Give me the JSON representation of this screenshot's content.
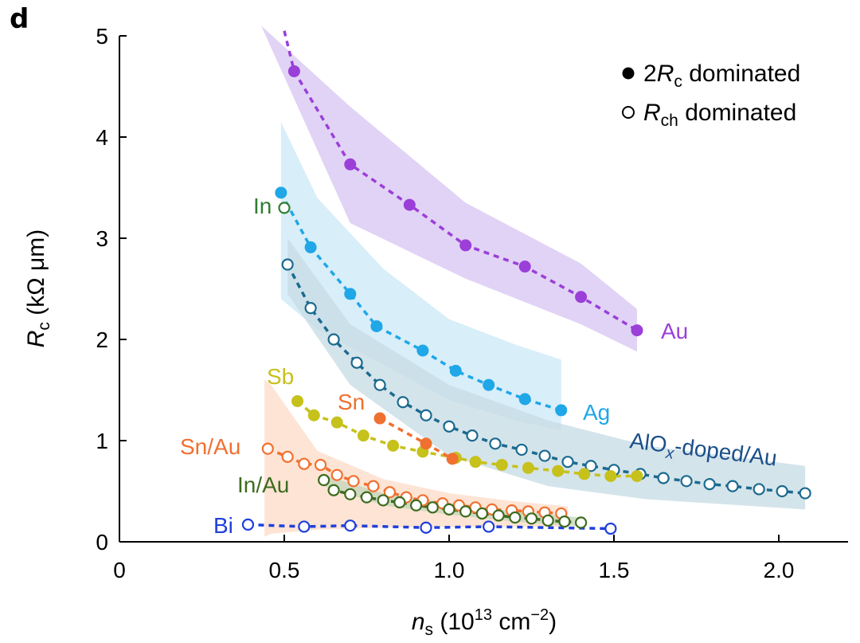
{
  "panel_label": "d",
  "chart_data": {
    "type": "scatter",
    "title": "",
    "xlabel": {
      "main": "n",
      "sub": "s",
      "unit_open": " (10",
      "sup": "13",
      "unit_rest": " cm",
      "sup2": "−2",
      "close": ")"
    },
    "ylabel": {
      "main": "R",
      "sub": "c",
      "unit": " (kΩ μm)"
    },
    "xlim": [
      0,
      2.2
    ],
    "ylim": [
      0,
      5
    ],
    "xticks": [
      0,
      0.5,
      1.0,
      1.5,
      2.0
    ],
    "xtick_labels": [
      "0",
      "0.5",
      "1.0",
      "1.5",
      "2.0"
    ],
    "yticks": [
      0,
      1,
      2,
      3,
      4,
      5
    ],
    "ytick_labels": [
      "0",
      "1",
      "2",
      "3",
      "4",
      "5"
    ],
    "legend": {
      "position": "top-right",
      "items": [
        {
          "marker": "filled",
          "pre": "2",
          "main": "R",
          "sub": "c",
          "post": " dominated"
        },
        {
          "marker": "open",
          "pre": "",
          "main": "R",
          "sub": "ch",
          "post": " dominated"
        }
      ]
    },
    "series": [
      {
        "name": "Au",
        "label": "Au",
        "color": "#9b3fd9",
        "band_color": "#d9c6f2",
        "marker": "filled",
        "x": [
          0.5,
          0.53,
          0.7,
          0.88,
          1.05,
          1.23,
          1.4,
          1.57
        ],
        "y": [
          5.05,
          4.65,
          3.73,
          3.33,
          2.93,
          2.72,
          2.42,
          2.09
        ],
        "band": {
          "x": [
            0.43,
            0.7,
            1.05,
            1.4,
            1.57
          ],
          "upper": [
            5.1,
            4.3,
            3.35,
            2.75,
            2.3
          ],
          "lower": [
            5.1,
            3.15,
            2.6,
            2.15,
            1.88
          ]
        }
      },
      {
        "name": "Ag",
        "label": "Ag",
        "color": "#1fa7e8",
        "band_color": "#cde9f7",
        "marker": "filled",
        "x": [
          0.49,
          0.58,
          0.7,
          0.78,
          0.92,
          1.02,
          1.12,
          1.23,
          1.34
        ],
        "y": [
          3.45,
          2.91,
          2.45,
          2.13,
          1.89,
          1.69,
          1.55,
          1.41,
          1.3
        ],
        "band": {
          "x": [
            0.49,
            0.6,
            0.8,
            1.0,
            1.2,
            1.34
          ],
          "upper": [
            4.15,
            3.4,
            2.7,
            2.2,
            1.95,
            1.8
          ],
          "lower": [
            2.4,
            2.1,
            1.75,
            1.4,
            1.2,
            1.1
          ]
        }
      },
      {
        "name": "AlOx-doped/Au",
        "label_pre": "AlO",
        "label_sub": "x",
        "label_post": "-doped/Au",
        "color": "#1b6a8f",
        "band_color": "#c8dde6",
        "marker": "open",
        "x": [
          0.51,
          0.58,
          0.65,
          0.72,
          0.79,
          0.86,
          0.93,
          1.0,
          1.07,
          1.14,
          1.22,
          1.29,
          1.36,
          1.43,
          1.5,
          1.58,
          1.65,
          1.72,
          1.79,
          1.86,
          1.94,
          2.01,
          2.08
        ],
        "y": [
          2.74,
          2.31,
          2.0,
          1.77,
          1.55,
          1.38,
          1.25,
          1.14,
          1.05,
          0.97,
          0.91,
          0.85,
          0.79,
          0.75,
          0.71,
          0.67,
          0.63,
          0.6,
          0.57,
          0.55,
          0.52,
          0.5,
          0.48
        ],
        "band": {
          "x": [
            0.51,
            0.7,
            1.0,
            1.3,
            1.6,
            2.08
          ],
          "upper": [
            3.0,
            2.15,
            1.55,
            1.2,
            0.95,
            0.75
          ],
          "lower": [
            2.45,
            1.55,
            0.85,
            0.55,
            0.42,
            0.32
          ]
        }
      },
      {
        "name": "In",
        "label": "In",
        "color": "#2e7d32",
        "marker": "open",
        "x": [
          0.5
        ],
        "y": [
          3.3
        ]
      },
      {
        "name": "Sb",
        "label": "Sb",
        "color": "#c6c11b",
        "marker": "filled",
        "x": [
          0.54,
          0.59,
          0.66,
          0.74,
          0.83,
          0.92,
          1.02,
          1.08,
          1.16,
          1.24,
          1.33,
          1.41,
          1.49,
          1.57
        ],
        "y": [
          1.39,
          1.25,
          1.18,
          1.05,
          0.95,
          0.89,
          0.83,
          0.79,
          0.76,
          0.73,
          0.7,
          0.67,
          0.65,
          0.65
        ]
      },
      {
        "name": "Sn",
        "label": "Sn",
        "color": "#f07030",
        "marker": "filled",
        "x": [
          0.79,
          0.93,
          1.01
        ],
        "y": [
          1.22,
          0.97,
          0.82
        ]
      },
      {
        "name": "Sn/Au",
        "label": "Sn/Au",
        "color": "#f07030",
        "band_color": "#fcdcc8",
        "marker": "open",
        "x": [
          0.45,
          0.51,
          0.56,
          0.61,
          0.66,
          0.71,
          0.77,
          0.82,
          0.87,
          0.92,
          0.98,
          1.03,
          1.08,
          1.13,
          1.19,
          1.24,
          1.29,
          1.34
        ],
        "y": [
          0.92,
          0.84,
          0.77,
          0.76,
          0.66,
          0.6,
          0.55,
          0.49,
          0.44,
          0.41,
          0.38,
          0.36,
          0.34,
          0.32,
          0.31,
          0.3,
          0.29,
          0.28
        ],
        "band": {
          "x": [
            0.44,
            0.46,
            0.6,
            0.8,
            1.0,
            1.2,
            1.36
          ],
          "upper": [
            1.6,
            1.55,
            0.9,
            0.62,
            0.48,
            0.4,
            0.35
          ],
          "lower": [
            0.05,
            0.08,
            0.12,
            0.14,
            0.15,
            0.15,
            0.15
          ]
        }
      },
      {
        "name": "In/Au",
        "label": "In/Au",
        "color": "#3e6b1f",
        "band_color": "#c5d6bb",
        "marker": "open",
        "x": [
          0.62,
          0.65,
          0.7,
          0.75,
          0.8,
          0.85,
          0.9,
          0.95,
          1.0,
          1.05,
          1.1,
          1.15,
          1.2,
          1.25,
          1.3,
          1.35,
          1.4
        ],
        "y": [
          0.61,
          0.51,
          0.47,
          0.44,
          0.41,
          0.39,
          0.36,
          0.34,
          0.32,
          0.3,
          0.28,
          0.26,
          0.24,
          0.23,
          0.21,
          0.2,
          0.19
        ],
        "band": {
          "x": [
            0.62,
            0.8,
            1.0,
            1.2,
            1.4
          ],
          "upper": [
            0.66,
            0.48,
            0.38,
            0.3,
            0.24
          ],
          "lower": [
            0.55,
            0.36,
            0.27,
            0.2,
            0.15
          ]
        }
      },
      {
        "name": "Bi",
        "label": "Bi",
        "color": "#1f3fdc",
        "marker": "open",
        "x": [
          0.39,
          0.56,
          0.7,
          0.93,
          1.12,
          1.49
        ],
        "y": [
          0.17,
          0.15,
          0.16,
          0.14,
          0.15,
          0.13
        ]
      }
    ]
  }
}
